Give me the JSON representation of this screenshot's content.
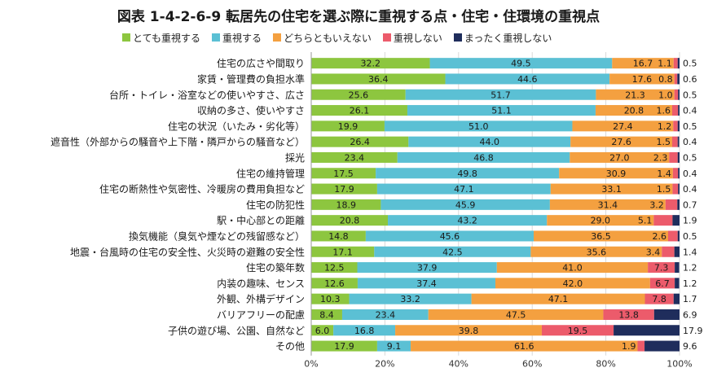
{
  "chart_data": {
    "type": "bar",
    "orientation": "horizontal",
    "stacked": true,
    "title": "図表 1-4-2-6-9 転居先の住宅を選ぶ際に重視する点・住宅・住環境の重視点",
    "legend_position": "top",
    "xlim": [
      0,
      100
    ],
    "x_ticks": [
      "0%",
      "20%",
      "40%",
      "60%",
      "80%",
      "100%"
    ],
    "grid": true,
    "categories": [
      "住宅の広さや間取り",
      "家賃・管理費の負担水準",
      "台所・トイレ・浴室などの使いやすさ、広さ",
      "収納の多さ、使いやすさ",
      "住宅の状況（いたみ・劣化等）",
      "遮音性（外部からの騒音や上下階・隣戸からの騒音など）",
      "採光",
      "住宅の維持管理",
      "住宅の断熱性や気密性、冷暖房の費用負担など",
      "住宅の防犯性",
      "駅・中心部との距離",
      "換気機能（臭気や煙などの残留感など）",
      "地震・台風時の住宅の安全性、火災時の避難の安全性",
      "住宅の築年数",
      "内装の趣味、センス",
      "外観、外構デザイン",
      "バリアフリーの配慮",
      "子供の遊び場、公園、自然など",
      "その他"
    ],
    "series": [
      {
        "name": "とても重視する",
        "color": "#8dc63f",
        "values": [
          32.2,
          36.4,
          25.6,
          26.1,
          19.9,
          26.4,
          23.4,
          17.5,
          17.9,
          18.9,
          20.8,
          14.8,
          17.1,
          12.5,
          12.6,
          10.3,
          8.4,
          6.0,
          17.9
        ]
      },
      {
        "name": "重視する",
        "color": "#5bc0d4",
        "values": [
          49.5,
          44.6,
          51.7,
          51.1,
          51.0,
          44.0,
          46.8,
          49.8,
          47.1,
          45.9,
          43.2,
          45.6,
          42.5,
          37.9,
          37.4,
          33.2,
          23.4,
          16.8,
          9.1
        ]
      },
      {
        "name": "どちらともいえない",
        "color": "#f4a040",
        "values": [
          16.7,
          17.6,
          21.3,
          20.8,
          27.4,
          27.6,
          27.0,
          30.9,
          33.1,
          31.4,
          29.0,
          36.5,
          35.6,
          41.0,
          42.0,
          47.1,
          47.5,
          39.8,
          61.6
        ]
      },
      {
        "name": "重視しない",
        "color": "#ec5b6b",
        "values": [
          1.1,
          0.8,
          1.0,
          1.6,
          1.2,
          1.5,
          2.3,
          1.4,
          1.5,
          3.2,
          5.1,
          2.6,
          3.4,
          7.3,
          6.7,
          7.8,
          13.8,
          19.5,
          1.9
        ]
      },
      {
        "name": "まったく重視しない",
        "color": "#1f2d5c",
        "values": [
          0.5,
          0.6,
          0.5,
          0.4,
          0.5,
          0.4,
          0.5,
          0.4,
          0.4,
          0.7,
          1.9,
          0.5,
          1.4,
          1.2,
          1.2,
          1.7,
          6.9,
          17.9,
          9.6
        ]
      }
    ]
  }
}
